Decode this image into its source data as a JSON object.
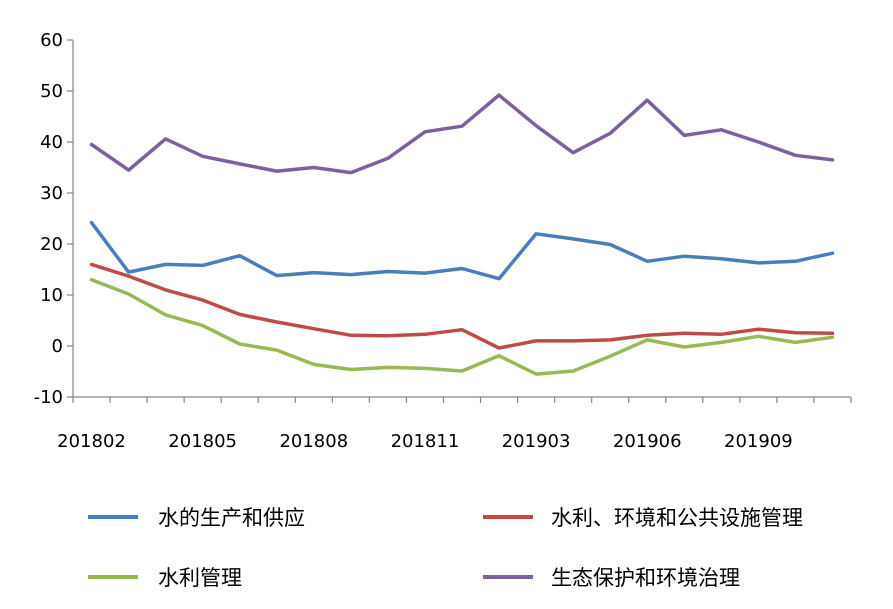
{
  "chart_data": {
    "type": "line",
    "title": "",
    "xlabel": "",
    "ylabel": "",
    "ylim": [
      -10,
      60
    ],
    "yticks": [
      -10,
      0,
      10,
      20,
      30,
      40,
      50,
      60
    ],
    "x": [
      "201802",
      "201803",
      "201804",
      "201805",
      "201806",
      "201807",
      "201808",
      "201809",
      "201810",
      "201811",
      "201812",
      "201902",
      "201903",
      "201904",
      "201905",
      "201906",
      "201907",
      "201908",
      "201909",
      "201910",
      "201911"
    ],
    "xtick_labels": [
      "201802",
      "201805",
      "201808",
      "201811",
      "201903",
      "201906",
      "201909"
    ],
    "grid": false,
    "legend_position": "bottom",
    "series": [
      {
        "name": "水的生产和供应",
        "color": "#4a7ebb",
        "values": [
          24.2,
          14.5,
          16.0,
          15.8,
          17.7,
          13.8,
          14.4,
          14.0,
          14.6,
          14.3,
          15.2,
          13.2,
          22.0,
          21.0,
          19.9,
          16.6,
          17.6,
          17.1,
          16.3,
          16.6,
          18.2
        ]
      },
      {
        "name": "水利、环境和公共设施管理",
        "color": "#be4b48",
        "values": [
          16.0,
          13.7,
          11.0,
          9.0,
          6.2,
          4.7,
          3.4,
          2.1,
          2.0,
          2.3,
          3.2,
          -0.4,
          1.0,
          1.0,
          1.2,
          2.1,
          2.5,
          2.3,
          3.3,
          2.6,
          2.5
        ]
      },
      {
        "name": "水利管理",
        "color": "#98b954",
        "values": [
          13.0,
          10.2,
          6.1,
          4.0,
          0.4,
          -0.8,
          -3.6,
          -4.6,
          -4.2,
          -4.4,
          -4.9,
          -1.9,
          -5.5,
          -4.9,
          -2.0,
          1.2,
          -0.2,
          0.7,
          1.9,
          0.7,
          1.7
        ]
      },
      {
        "name": "生态保护和环境治理",
        "color": "#7d60a0",
        "values": [
          39.5,
          34.5,
          40.6,
          37.2,
          35.7,
          34.3,
          35.0,
          34.0,
          36.8,
          42.0,
          43.1,
          49.2,
          43.2,
          37.9,
          41.7,
          48.2,
          41.3,
          42.4,
          40.0,
          37.4,
          36.5
        ]
      }
    ]
  }
}
